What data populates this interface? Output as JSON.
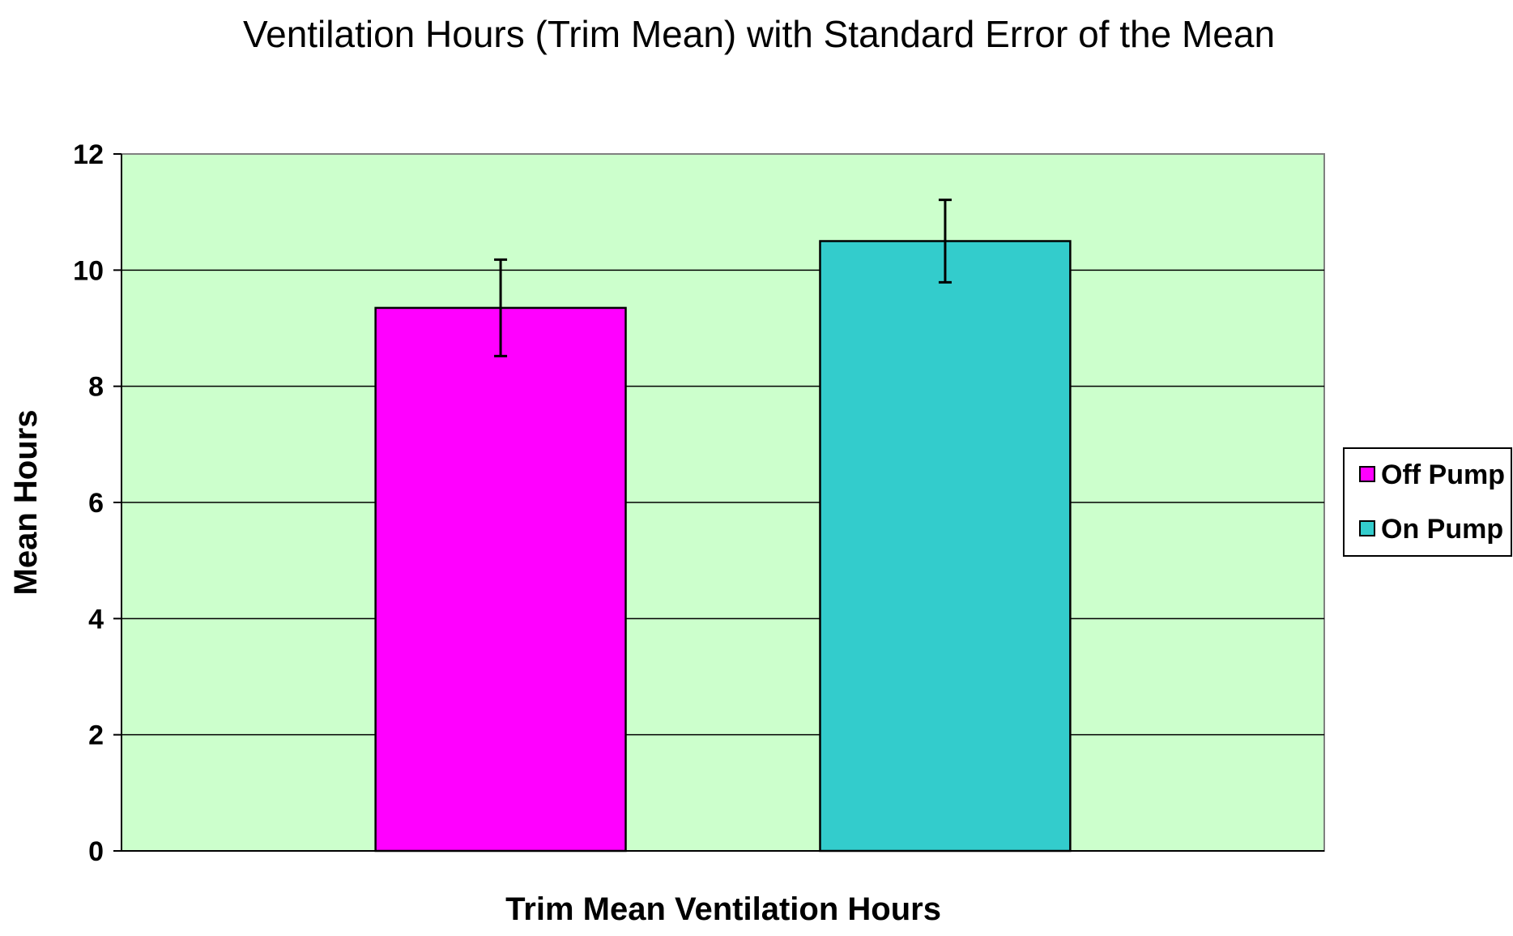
{
  "chart_data": {
    "type": "bar",
    "title": "Ventilation Hours (Trim Mean) with Standard Error of the Mean",
    "xlabel": "Trim Mean Ventilation Hours",
    "ylabel": "Mean Hours",
    "ylim": [
      0,
      12
    ],
    "yticks": [
      "0",
      "2",
      "4",
      "6",
      "8",
      "10",
      "12"
    ],
    "grid": true,
    "legend_position": "right",
    "plot_background": "#CCFFCC",
    "series": [
      {
        "name": "Off Pump",
        "value": 9.35,
        "error": 0.83,
        "color": "#FF00FF"
      },
      {
        "name": "On Pump",
        "value": 10.5,
        "error": 0.71,
        "color": "#33CCCC"
      }
    ]
  }
}
